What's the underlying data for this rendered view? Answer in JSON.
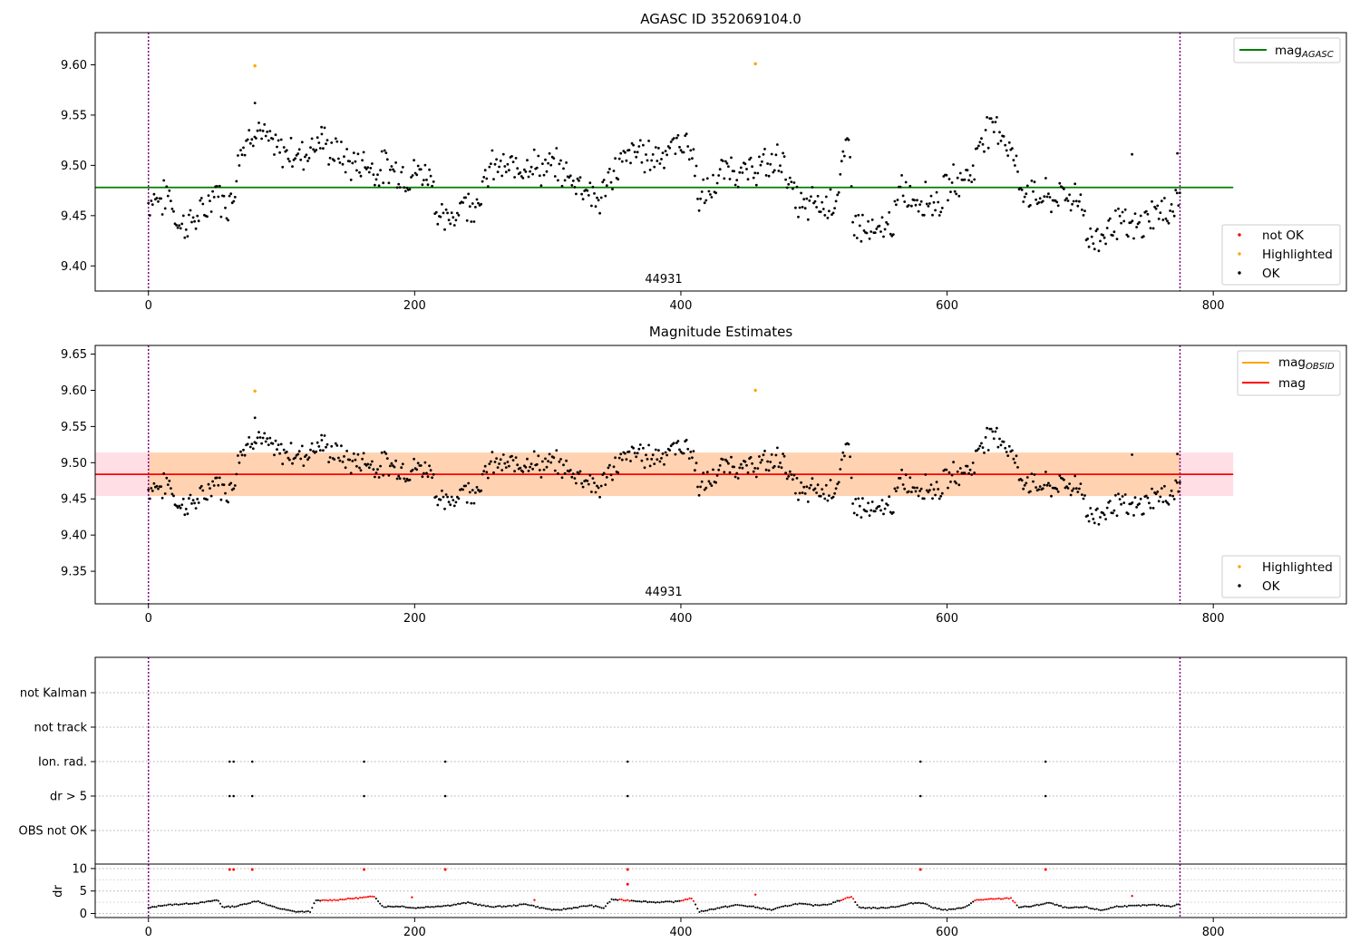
{
  "chart_data": [
    {
      "type": "scatter",
      "title": "AGASC ID 352069104.0",
      "xlim": [
        -40,
        900
      ],
      "ylim": [
        9.375,
        9.632
      ],
      "xticks": [
        0,
        200,
        400,
        600,
        800
      ],
      "yticks": [
        9.4,
        9.45,
        9.5,
        9.55,
        9.6
      ],
      "ytick_labels": [
        "9.40",
        "9.45",
        "9.50",
        "9.55",
        "9.60"
      ],
      "annotation": {
        "x": 387,
        "text": "44931"
      },
      "obs_bounds": [
        0,
        775
      ],
      "agasc_mag": 9.478,
      "highlighted": [
        [
          80,
          9.599
        ],
        [
          456,
          9.601
        ]
      ],
      "legend_top": {
        "position": "top-right",
        "entries": [
          {
            "name": "mag",
            "sub": "AGASC",
            "color": "#008000"
          }
        ]
      },
      "legend_bottom": {
        "position": "bottom-right",
        "entries": [
          {
            "name": "not OK",
            "color": "#ff0000"
          },
          {
            "name": "Highlighted",
            "color": "#ffa500"
          },
          {
            "name": "OK",
            "color": "#000000"
          }
        ]
      },
      "ok_segments": [
        [
          0,
          9.462
        ],
        [
          4,
          9.47
        ],
        [
          10,
          9.465
        ],
        [
          16,
          9.473
        ],
        [
          20,
          9.448
        ],
        [
          25,
          9.44
        ],
        [
          32,
          9.445
        ],
        [
          38,
          9.448
        ],
        [
          44,
          9.458
        ],
        [
          48,
          9.472
        ],
        [
          52,
          9.478
        ],
        [
          56,
          9.46
        ],
        [
          60,
          9.463
        ],
        [
          64,
          9.47
        ],
        [
          68,
          9.515
        ],
        [
          72,
          9.52
        ],
        [
          76,
          9.528
        ],
        [
          80,
          9.54
        ],
        [
          84,
          9.535
        ],
        [
          88,
          9.525
        ],
        [
          94,
          9.518
        ],
        [
          100,
          9.512
        ],
        [
          106,
          9.515
        ],
        [
          112,
          9.51
        ],
        [
          118,
          9.512
        ],
        [
          124,
          9.522
        ],
        [
          130,
          9.525
        ],
        [
          136,
          9.515
        ],
        [
          142,
          9.513
        ],
        [
          148,
          9.505
        ],
        [
          154,
          9.5
        ],
        [
          160,
          9.504
        ],
        [
          166,
          9.5
        ],
        [
          172,
          9.492
        ],
        [
          178,
          9.5
        ],
        [
          184,
          9.496
        ],
        [
          190,
          9.493
        ],
        [
          196,
          9.488
        ],
        [
          202,
          9.495
        ],
        [
          208,
          9.49
        ],
        [
          213,
          9.496
        ],
        [
          216,
          9.455
        ],
        [
          220,
          9.445
        ],
        [
          224,
          9.442
        ],
        [
          228,
          9.45
        ],
        [
          232,
          9.455
        ],
        [
          236,
          9.468
        ],
        [
          240,
          9.46
        ],
        [
          244,
          9.462
        ],
        [
          248,
          9.47
        ],
        [
          252,
          9.478
        ],
        [
          256,
          9.495
        ],
        [
          262,
          9.5
        ],
        [
          268,
          9.495
        ],
        [
          274,
          9.497
        ],
        [
          280,
          9.5
        ],
        [
          286,
          9.505
        ],
        [
          292,
          9.498
        ],
        [
          298,
          9.495
        ],
        [
          304,
          9.5
        ],
        [
          310,
          9.495
        ],
        [
          316,
          9.488
        ],
        [
          322,
          9.484
        ],
        [
          328,
          9.48
        ],
        [
          334,
          9.47
        ],
        [
          338,
          9.462
        ],
        [
          344,
          9.48
        ],
        [
          350,
          9.495
        ],
        [
          356,
          9.503
        ],
        [
          362,
          9.51
        ],
        [
          368,
          9.515
        ],
        [
          374,
          9.508
        ],
        [
          380,
          9.51
        ],
        [
          386,
          9.513
        ],
        [
          392,
          9.518
        ],
        [
          398,
          9.52
        ],
        [
          404,
          9.525
        ],
        [
          410,
          9.505
        ],
        [
          414,
          9.465
        ],
        [
          418,
          9.47
        ],
        [
          424,
          9.478
        ],
        [
          430,
          9.49
        ],
        [
          436,
          9.5
        ],
        [
          442,
          9.495
        ],
        [
          448,
          9.49
        ],
        [
          454,
          9.495
        ],
        [
          460,
          9.5
        ],
        [
          466,
          9.498
        ],
        [
          472,
          9.505
        ],
        [
          476,
          9.51
        ],
        [
          482,
          9.478
        ],
        [
          488,
          9.462
        ],
        [
          494,
          9.455
        ],
        [
          500,
          9.465
        ],
        [
          506,
          9.458
        ],
        [
          512,
          9.465
        ],
        [
          518,
          9.47
        ],
        [
          522,
          9.505
        ],
        [
          526,
          9.52
        ],
        [
          530,
          9.445
        ],
        [
          536,
          9.438
        ],
        [
          542,
          9.432
        ],
        [
          548,
          9.43
        ],
        [
          554,
          9.44
        ],
        [
          560,
          9.445
        ],
        [
          566,
          9.478
        ],
        [
          572,
          9.47
        ],
        [
          578,
          9.465
        ],
        [
          584,
          9.47
        ],
        [
          590,
          9.462
        ],
        [
          596,
          9.468
        ],
        [
          602,
          9.482
        ],
        [
          608,
          9.485
        ],
        [
          614,
          9.49
        ],
        [
          620,
          9.495
        ],
        [
          626,
          9.532
        ],
        [
          632,
          9.535
        ],
        [
          638,
          9.54
        ],
        [
          644,
          9.525
        ],
        [
          650,
          9.51
        ],
        [
          654,
          9.48
        ],
        [
          660,
          9.475
        ],
        [
          666,
          9.468
        ],
        [
          672,
          9.47
        ],
        [
          678,
          9.465
        ],
        [
          684,
          9.47
        ],
        [
          690,
          9.468
        ],
        [
          696,
          9.47
        ],
        [
          702,
          9.465
        ],
        [
          705,
          9.428
        ],
        [
          710,
          9.425
        ],
        [
          716,
          9.43
        ],
        [
          722,
          9.44
        ],
        [
          728,
          9.445
        ],
        [
          734,
          9.438
        ],
        [
          740,
          9.435
        ],
        [
          746,
          9.44
        ],
        [
          752,
          9.45
        ],
        [
          758,
          9.455
        ],
        [
          764,
          9.45
        ],
        [
          770,
          9.462
        ],
        [
          775,
          9.47
        ]
      ],
      "ok_outliers": [
        [
          80,
          9.562
        ],
        [
          130,
          9.538
        ],
        [
          739,
          9.511
        ],
        [
          773,
          9.512
        ]
      ]
    },
    {
      "type": "scatter",
      "title": "Magnitude Estimates",
      "xlim": [
        -40,
        900
      ],
      "ylim": [
        9.305,
        9.662
      ],
      "xticks": [
        0,
        200,
        400,
        600,
        800
      ],
      "yticks": [
        9.35,
        9.4,
        9.45,
        9.5,
        9.55,
        9.6,
        9.65
      ],
      "ytick_labels": [
        "9.35",
        "9.40",
        "9.45",
        "9.50",
        "9.55",
        "9.60",
        "9.65"
      ],
      "annotation": {
        "x": 387,
        "text": "44931"
      },
      "obs_bounds": [
        0,
        775
      ],
      "mag": 9.484,
      "mag_band": [
        9.454,
        9.514
      ],
      "highlighted": [
        [
          80,
          9.599
        ],
        [
          456,
          9.6
        ]
      ],
      "legend_top": {
        "position": "top-right",
        "entries": [
          {
            "name": "mag",
            "sub": "OBSID",
            "color": "#ffa500"
          },
          {
            "name": "mag",
            "sub": "",
            "color": "#ff0000"
          }
        ]
      },
      "legend_bottom": {
        "position": "bottom-right",
        "entries": [
          {
            "name": "Highlighted",
            "color": "#ffa500"
          },
          {
            "name": "OK",
            "color": "#000000"
          }
        ]
      }
    },
    {
      "type": "scatter",
      "xlim": [
        -40,
        900
      ],
      "xticks": [
        0,
        200,
        400,
        600,
        800
      ],
      "categories": [
        "not Kalman",
        "not track",
        "Ion. rad.",
        "dr > 5",
        "OBS not OK"
      ],
      "flag_times": [
        61,
        64,
        78,
        162,
        223,
        360,
        580,
        674
      ],
      "flag_rows": [
        "Ion. rad.",
        "dr > 5"
      ],
      "obs_bounds": [
        0,
        775
      ],
      "dr": {
        "ylabel": "dr",
        "ylim": [
          -0.5,
          11
        ],
        "yticks": [
          0,
          5,
          10
        ],
        "ytick_labels": [
          "0",
          "5",
          "10"
        ],
        "high_points": [
          [
            61,
            9.8
          ],
          [
            64,
            9.8
          ],
          [
            78,
            9.8
          ],
          [
            162,
            9.8
          ],
          [
            223,
            9.8
          ],
          [
            360,
            9.8
          ],
          [
            580,
            9.8
          ],
          [
            674,
            9.8
          ],
          [
            360,
            6.5
          ]
        ],
        "profile": [
          [
            0,
            1.2
          ],
          [
            10,
            1.8
          ],
          [
            20,
            2.0
          ],
          [
            30,
            2.2
          ],
          [
            40,
            2.4
          ],
          [
            52,
            3.0
          ],
          [
            56,
            1.4
          ],
          [
            66,
            1.6
          ],
          [
            76,
            2.4
          ],
          [
            82,
            2.8
          ],
          [
            90,
            1.8
          ],
          [
            100,
            1.0
          ],
          [
            110,
            0.4
          ],
          [
            122,
            0.4
          ],
          [
            125,
            2.8
          ],
          [
            140,
            3.0
          ],
          [
            152,
            3.3
          ],
          [
            164,
            3.6
          ],
          [
            170,
            3.8
          ],
          [
            176,
            1.5
          ],
          [
            190,
            1.6
          ],
          [
            200,
            1.2
          ],
          [
            212,
            1.5
          ],
          [
            226,
            1.8
          ],
          [
            240,
            2.4
          ],
          [
            256,
            1.5
          ],
          [
            270,
            1.6
          ],
          [
            284,
            2.1
          ],
          [
            294,
            1.3
          ],
          [
            306,
            0.7
          ],
          [
            318,
            1.2
          ],
          [
            332,
            1.8
          ],
          [
            342,
            1.2
          ],
          [
            348,
            3.1
          ],
          [
            362,
            2.9
          ],
          [
            380,
            2.5
          ],
          [
            396,
            2.6
          ],
          [
            408,
            3.4
          ],
          [
            414,
            0.4
          ],
          [
            428,
            1.2
          ],
          [
            442,
            1.9
          ],
          [
            454,
            1.5
          ],
          [
            468,
            0.8
          ],
          [
            478,
            1.6
          ],
          [
            488,
            2.2
          ],
          [
            500,
            1.8
          ],
          [
            512,
            2.1
          ],
          [
            522,
            3.2
          ],
          [
            528,
            3.8
          ],
          [
            534,
            1.3
          ],
          [
            550,
            1.2
          ],
          [
            564,
            1.6
          ],
          [
            574,
            2.3
          ],
          [
            582,
            2.4
          ],
          [
            590,
            1.2
          ],
          [
            600,
            0.8
          ],
          [
            612,
            1.2
          ],
          [
            622,
            3.0
          ],
          [
            636,
            3.2
          ],
          [
            648,
            3.4
          ],
          [
            654,
            1.4
          ],
          [
            664,
            1.6
          ],
          [
            676,
            2.4
          ],
          [
            690,
            1.2
          ],
          [
            704,
            1.4
          ],
          [
            716,
            0.7
          ],
          [
            728,
            1.6
          ],
          [
            742,
            1.7
          ],
          [
            756,
            1.9
          ],
          [
            768,
            1.6
          ],
          [
            775,
            2.1
          ]
        ],
        "red_ranges": [
          [
            130,
            170
          ],
          [
            354,
            362
          ],
          [
            400,
            410
          ],
          [
            520,
            530
          ],
          [
            620,
            652
          ]
        ]
      }
    }
  ]
}
